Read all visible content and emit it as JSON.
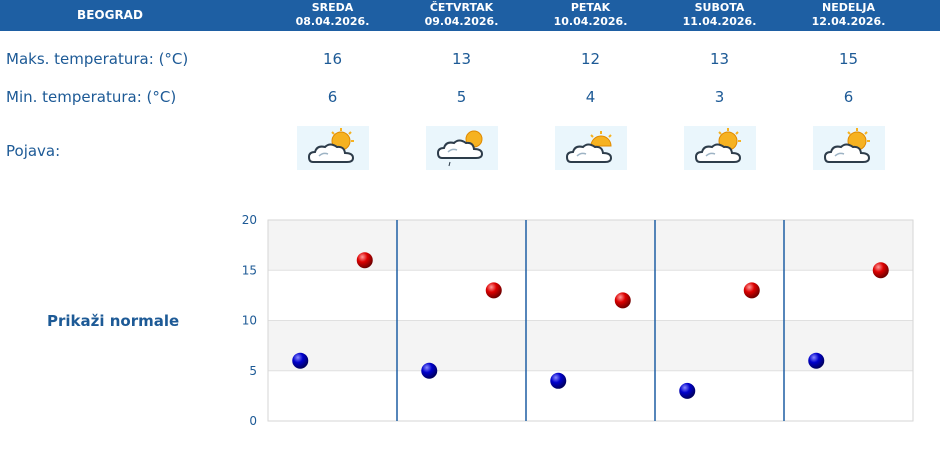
{
  "header": {
    "city": "BEOGRAD",
    "days": [
      {
        "name": "SREDA",
        "date": "08.04.2026."
      },
      {
        "name": "ČETVRTAK",
        "date": "09.04.2026."
      },
      {
        "name": "PETAK",
        "date": "10.04.2026."
      },
      {
        "name": "SUBOTA",
        "date": "11.04.2026."
      },
      {
        "name": "NEDELJA",
        "date": "12.04.2026."
      }
    ]
  },
  "rows": {
    "max_label": "Maks. temperatura: (°C)",
    "min_label": "Min. temperatura: (°C)",
    "phen_label": "Pojava:",
    "max_values": [
      "16",
      "13",
      "12",
      "13",
      "15"
    ],
    "min_values": [
      "6",
      "5",
      "4",
      "3",
      "6"
    ]
  },
  "icons": [
    "partly-cloudy-sun-icon",
    "cloudy-light-rain-icon",
    "cloudy-sun-icon",
    "partly-cloudy-sun-icon",
    "partly-cloudy-sun-icon"
  ],
  "normals_link": "Prikaži normale",
  "colors": {
    "header_bg": "#1e5fa3",
    "text": "#1d5a96",
    "max_dot": "#cc0000",
    "min_dot": "#0000bb"
  },
  "chart_data": {
    "type": "scatter",
    "categories": [
      "SREDA",
      "ČETVRTAK",
      "PETAK",
      "SUBOTA",
      "NEDELJA"
    ],
    "series": [
      {
        "values": [
          16,
          13,
          12,
          13,
          15
        ]
      },
      {
        "values": [
          6,
          5,
          4,
          3,
          6
        ]
      }
    ],
    "ylim": [
      0,
      20
    ],
    "yticks": [
      "0",
      "5",
      "10",
      "15",
      "20"
    ],
    "grid": true
  }
}
